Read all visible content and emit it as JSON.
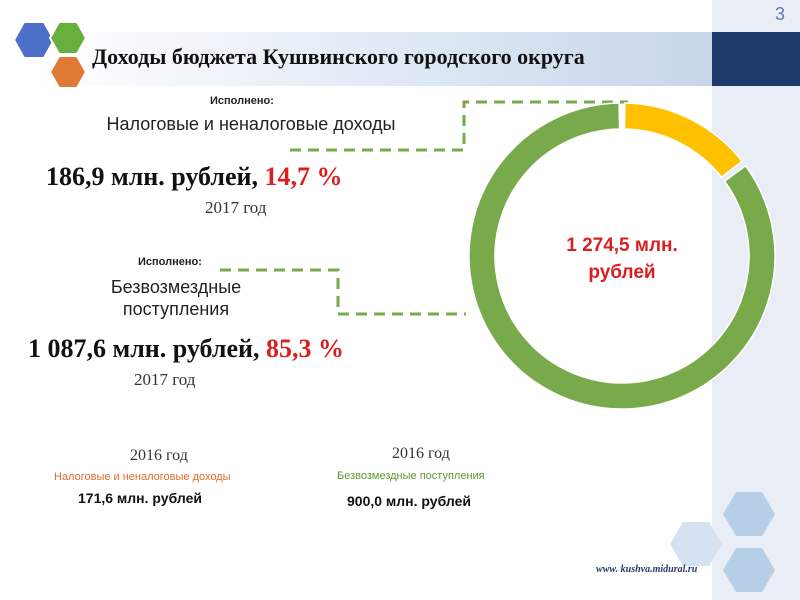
{
  "slide_number": "3",
  "title": "Доходы бюджета Кушвинского городского округа",
  "tax": {
    "executed_label": "Исполнено:",
    "category": "Налоговые и неналоговые доходы",
    "amount": "186,9 млн. рублей,",
    "percent": "14,7 %",
    "year": "2017 год"
  },
  "grants": {
    "executed_label": "Исполнено:",
    "category": "Безвозмездные поступления",
    "amount": "1 087,6 млн. рублей,",
    "percent": "85,3 %",
    "year": "2017 год"
  },
  "prev_tax": {
    "year": "2016 год",
    "label": "Налоговые и неналоговые доходы",
    "value": "171,6 млн. рублей"
  },
  "prev_grants": {
    "year": "2016 год",
    "label": "Безвозмездные поступления",
    "value": "900,0 млн. рублей"
  },
  "total": "1 274,5 млн. рублей",
  "website": "www. kushva.midural.ru",
  "colors": {
    "tax": "#ffc000",
    "grants": "#78a94a",
    "ring_edge": "#5b8a35",
    "title_dark": "#1f3b6e",
    "accent_red": "#d92020",
    "hex_blue": "#4e6fc8",
    "hex_green": "#6aae3e",
    "hex_orange": "#e07a36",
    "hex_light": "#b8cfe8"
  },
  "chart_data": {
    "type": "pie",
    "donut": true,
    "categories": [
      "Налоговые и неналоговые доходы",
      "Безвозмездные поступления"
    ],
    "values": [
      186.9,
      1087.6
    ],
    "percent": [
      14.7,
      85.3
    ],
    "total": 1274.5,
    "colors": [
      "#ffc000",
      "#78a94a"
    ]
  }
}
